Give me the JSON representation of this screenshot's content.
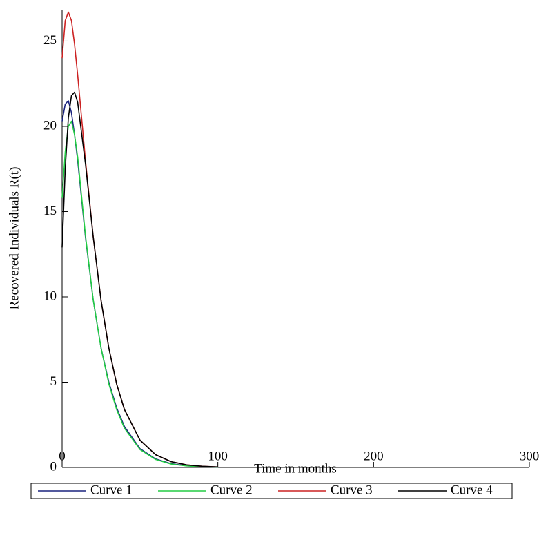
{
  "chart_data": {
    "type": "line",
    "x_label": "Time in months",
    "y_label": "Recovered Individuals R(t)",
    "x": [
      0,
      2,
      4,
      6,
      8,
      10,
      15,
      20,
      25,
      30,
      35,
      40,
      50,
      60,
      70,
      80,
      90,
      100
    ],
    "series": [
      {
        "name": "Curve 1",
        "color": "#1a237e",
        "values": [
          20.3,
          21.3,
          21.5,
          20.8,
          19.5,
          18,
          13.5,
          9.8,
          7,
          5,
          3.5,
          2.4,
          1.1,
          0.5,
          0.22,
          0.1,
          0.04,
          0.02
        ]
      },
      {
        "name": "Curve 2",
        "color": "#22cc44",
        "values": [
          15.8,
          18.5,
          20,
          20.3,
          19.5,
          18.2,
          13.6,
          9.8,
          7,
          4.9,
          3.4,
          2.3,
          1.05,
          0.47,
          0.2,
          0.09,
          0.04,
          0.02
        ]
      },
      {
        "name": "Curve 3",
        "color": "#cc2222",
        "values": [
          24,
          26.2,
          26.7,
          26.2,
          24.8,
          23,
          18,
          13.5,
          9.8,
          7,
          4.9,
          3.4,
          1.6,
          0.75,
          0.34,
          0.15,
          0.07,
          0.03
        ]
      },
      {
        "name": "Curve 4",
        "color": "#000000",
        "values": [
          12.9,
          17.5,
          20.5,
          21.8,
          22,
          21.4,
          17.8,
          13.5,
          9.8,
          7,
          4.9,
          3.4,
          1.6,
          0.75,
          0.34,
          0.15,
          0.07,
          0.03
        ]
      }
    ],
    "xlim": [
      0,
      300
    ],
    "ylim": [
      0,
      26.8
    ],
    "xticks": [
      0,
      100,
      200,
      300
    ],
    "yticks": [
      0,
      5,
      10,
      15,
      20,
      25
    ],
    "grid": false,
    "legend": "bottom"
  }
}
